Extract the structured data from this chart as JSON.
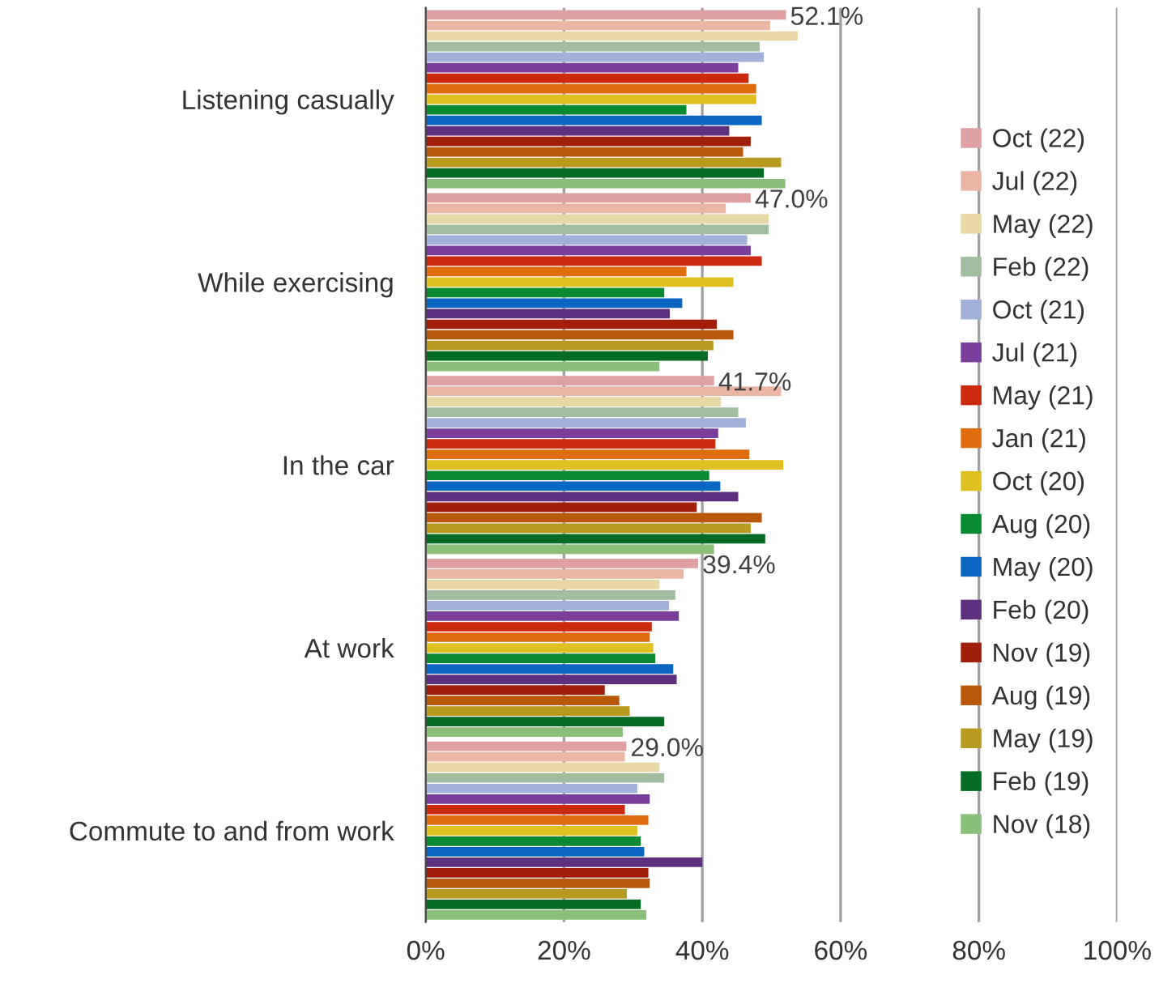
{
  "chart_data": {
    "type": "bar",
    "orientation": "horizontal",
    "categories": [
      "Listening casually",
      "While exercising",
      "In the car",
      "At work",
      "Commute to and from work"
    ],
    "series": [
      {
        "name": "Oct (22)",
        "color": "#dea0a0",
        "values": [
          52.1,
          47.0,
          41.7,
          39.4,
          29.0
        ],
        "value_labels": [
          "52.1%",
          "47.0%",
          "41.7%",
          "39.4%",
          "29.0%"
        ]
      },
      {
        "name": "Jul (22)",
        "color": "#ebb5a5",
        "values": [
          49.8,
          43.4,
          51.4,
          37.3,
          28.8
        ]
      },
      {
        "name": "May (22)",
        "color": "#e8d8a5",
        "values": [
          53.8,
          49.6,
          42.7,
          33.8,
          33.8
        ]
      },
      {
        "name": "Feb (22)",
        "color": "#a0bda0",
        "values": [
          48.3,
          49.6,
          45.2,
          36.1,
          34.5
        ]
      },
      {
        "name": "Oct (21)",
        "color": "#a0b0d8",
        "values": [
          48.9,
          46.5,
          46.3,
          35.2,
          30.6
        ]
      },
      {
        "name": "Jul (21)",
        "color": "#7a3f9b",
        "values": [
          45.2,
          47.0,
          42.3,
          36.6,
          32.4
        ]
      },
      {
        "name": "May (21)",
        "color": "#cc2a10",
        "values": [
          46.7,
          48.6,
          41.9,
          32.7,
          28.8
        ]
      },
      {
        "name": "Jan (21)",
        "color": "#e06c10",
        "values": [
          47.8,
          37.7,
          46.8,
          32.4,
          32.2
        ]
      },
      {
        "name": "Oct (20)",
        "color": "#e0c020",
        "values": [
          47.8,
          44.5,
          51.7,
          32.9,
          30.6
        ]
      },
      {
        "name": "Aug (20)",
        "color": "#0a8a30",
        "values": [
          37.7,
          34.5,
          41.0,
          33.2,
          31.1
        ]
      },
      {
        "name": "May (20)",
        "color": "#0a66c0",
        "values": [
          48.6,
          37.1,
          42.6,
          35.8,
          31.6
        ]
      },
      {
        "name": "Feb (20)",
        "color": "#5e3080",
        "values": [
          43.9,
          35.3,
          45.2,
          36.3,
          40.0
        ]
      },
      {
        "name": "Nov (19)",
        "color": "#a01e0a",
        "values": [
          47.0,
          42.1,
          39.2,
          25.9,
          32.2
        ]
      },
      {
        "name": "Aug (19)",
        "color": "#b8580a",
        "values": [
          45.9,
          44.5,
          48.6,
          28.0,
          32.4
        ]
      },
      {
        "name": "May (19)",
        "color": "#b89a20",
        "values": [
          51.4,
          41.6,
          47.0,
          29.5,
          29.1
        ]
      },
      {
        "name": "Feb (19)",
        "color": "#056b25",
        "values": [
          48.9,
          40.8,
          49.1,
          34.5,
          31.1
        ]
      },
      {
        "name": "Nov (18)",
        "color": "#8abf7a",
        "values": [
          52.0,
          33.8,
          41.7,
          28.5,
          31.9
        ]
      }
    ],
    "xlim": [
      0,
      100
    ],
    "xticks": [
      {
        "value": 0,
        "label": "0%"
      },
      {
        "value": 20,
        "label": "20%"
      },
      {
        "value": 40,
        "label": "40%"
      },
      {
        "value": 60,
        "label": "60%"
      },
      {
        "value": 80,
        "label": "80%"
      },
      {
        "value": 100,
        "label": "100%"
      }
    ],
    "grid": "x",
    "legend": "right"
  }
}
